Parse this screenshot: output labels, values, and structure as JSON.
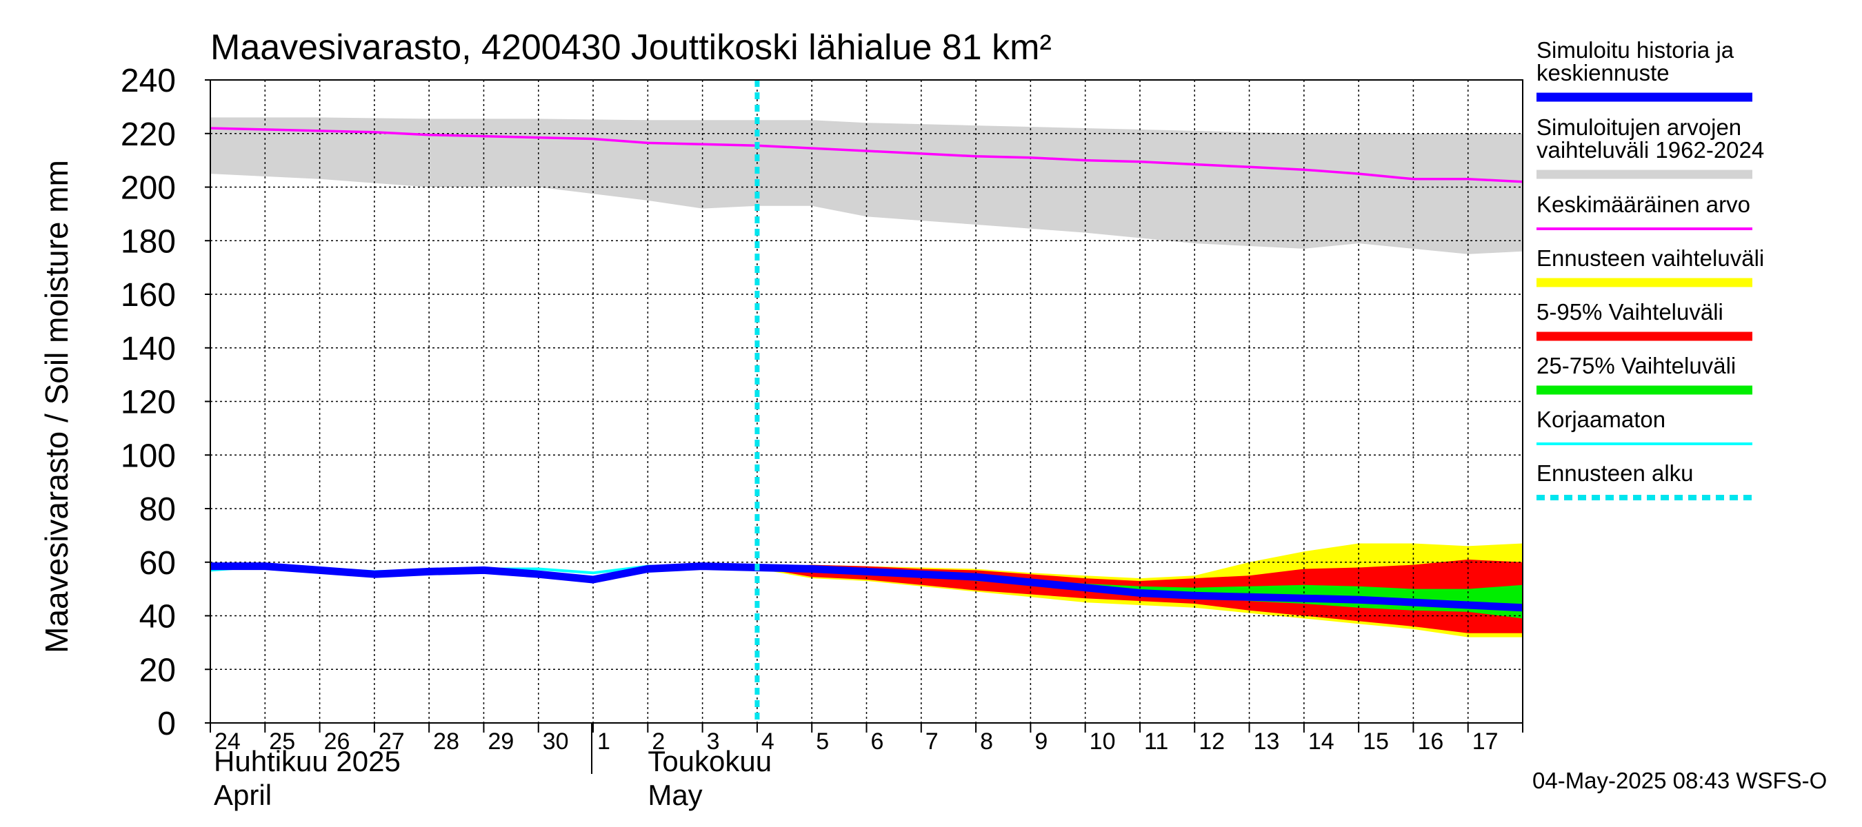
{
  "chart_data": {
    "type": "area",
    "title": "Maavesivarasto, 4200430 Jouttikoski lähialue 81 km²",
    "ylabel": "Maavesivarasto / Soil moisture   mm",
    "ylim": [
      0,
      240
    ],
    "yticks": [
      "0",
      "20",
      "40",
      "60",
      "80",
      "100",
      "120",
      "140",
      "160",
      "180",
      "200",
      "220",
      "240"
    ],
    "x_day_labels": [
      "24",
      "25",
      "26",
      "27",
      "28",
      "29",
      "30",
      "1",
      "2",
      "3",
      "4",
      "5",
      "6",
      "7",
      "8",
      "9",
      "10",
      "11",
      "12",
      "13",
      "14",
      "15",
      "16",
      "17"
    ],
    "x_range_days": [
      0,
      24
    ],
    "months": [
      {
        "line1": "Huhtikuu  2025",
        "line2": "April"
      },
      {
        "line1": "Toukokuu",
        "line2": "May"
      }
    ],
    "forecast_start_day": 10.0,
    "historical_range": {
      "x": [
        0,
        2,
        4,
        6,
        8,
        9,
        10,
        11,
        12,
        14,
        16,
        18,
        20,
        21,
        22,
        23,
        24
      ],
      "upper": [
        226,
        226,
        225.5,
        225.5,
        225,
        225,
        225,
        225,
        224,
        223,
        222,
        221,
        220,
        220,
        220,
        220,
        220
      ],
      "lower": [
        205,
        203,
        200,
        200,
        195,
        192,
        193,
        193,
        189,
        186,
        183,
        179,
        177,
        179,
        177,
        175,
        176
      ]
    },
    "mean": {
      "x": [
        0,
        1,
        2,
        3,
        4,
        5,
        6,
        7,
        8,
        9,
        10,
        11,
        12,
        13,
        14,
        15,
        16,
        17,
        18,
        19,
        20,
        21,
        22,
        23,
        24
      ],
      "values": [
        222,
        221.5,
        221,
        220.5,
        219.5,
        219,
        218.5,
        218,
        216.5,
        216,
        215.5,
        214.5,
        213.5,
        212.5,
        211.5,
        211,
        210,
        209.5,
        208.5,
        207.5,
        206.5,
        205,
        203,
        203,
        202
      ]
    },
    "forecast_x": [
      10,
      11,
      12,
      13,
      14,
      15,
      16,
      17,
      18,
      19,
      20,
      21,
      22,
      23,
      24
    ],
    "forecast_range": {
      "upper": [
        58,
        59,
        58.5,
        58,
        57.5,
        56,
        55,
        54,
        55,
        60,
        64,
        67,
        67,
        66,
        67
      ],
      "lower": [
        57.5,
        54,
        53,
        51,
        49,
        47,
        45,
        44,
        43,
        41,
        39,
        37,
        35,
        32,
        32
      ]
    },
    "range_5_95": {
      "upper": [
        58,
        59,
        58.5,
        57.5,
        57,
        55.5,
        54,
        53,
        54,
        55,
        57.5,
        58,
        59,
        61,
        60
      ],
      "lower": [
        58,
        54.5,
        53.5,
        51.5,
        49.5,
        48,
        46.5,
        45.5,
        44.5,
        42,
        40,
        38,
        36,
        33.5,
        33.5
      ]
    },
    "range_25_75": {
      "upper": [
        58,
        57.5,
        57,
        56,
        55,
        53.5,
        52,
        51,
        50.5,
        51,
        51.5,
        51,
        50,
        50,
        51.5
      ],
      "lower": [
        58,
        57,
        56,
        55,
        53,
        51.5,
        49.5,
        48,
        47,
        45.5,
        44.5,
        43,
        42,
        41.5,
        39
      ]
    },
    "simulated": {
      "x": [
        0,
        1,
        2,
        3,
        4,
        5,
        6,
        7,
        8,
        9,
        10,
        11,
        12,
        13,
        14,
        15,
        16,
        17,
        18,
        19,
        20,
        21,
        22,
        23,
        24
      ],
      "values": [
        58.5,
        58.5,
        57,
        55.5,
        56.5,
        57,
        55.5,
        53.5,
        57.5,
        58.5,
        58,
        57.5,
        56.5,
        55.5,
        54.5,
        52.5,
        50.5,
        48.5,
        47.5,
        47,
        46.5,
        46,
        45,
        44,
        43
      ]
    },
    "uncorrected": {
      "x": [
        0,
        1,
        2,
        3,
        4,
        5,
        6,
        7,
        8,
        9,
        10
      ],
      "values": [
        57,
        58.5,
        57.5,
        56.5,
        57,
        57.5,
        57.5,
        56,
        58.5,
        58.5,
        58
      ]
    },
    "legend": [
      {
        "label": "Simuloitu historia ja keskiennuste",
        "color": "#0000ff",
        "style": "thick"
      },
      {
        "label": "Simuloitujen arvojen vaihteluväli 1962-2024",
        "color": "#d3d3d3",
        "style": "thick"
      },
      {
        "label": "Keskimääräinen arvo",
        "color": "#ff00ff",
        "style": "thin"
      },
      {
        "label": "Ennusteen vaihteluväli",
        "color": "#ffff00",
        "style": "thick"
      },
      {
        "label": "5-95% Vaihteluväli",
        "color": "#ff0000",
        "style": "thick"
      },
      {
        "label": "25-75% Vaihteluväli",
        "color": "#00ee00",
        "style": "thick"
      },
      {
        "label": "Korjaamaton",
        "color": "#00ffff",
        "style": "thin"
      },
      {
        "label": "Ennusteen alku",
        "color": "#00e5ee",
        "style": "dashed"
      }
    ]
  },
  "legend_lines": [
    [
      "Simuloitu historia ja",
      "keskiennuste"
    ],
    [
      "Simuloitujen arvojen",
      "vaihteluväli 1962-2024"
    ],
    [
      "Keskimääräinen arvo"
    ],
    [
      "Ennusteen vaihteluväli"
    ],
    [
      "5-95% Vaihteluväli"
    ],
    [
      "25-75% Vaihteluväli"
    ],
    [
      "Korjaamaton"
    ],
    [
      "Ennusteen alku"
    ]
  ],
  "footer": "04-May-2025 08:43 WSFS-O",
  "colors": {
    "historical": "#d3d3d3",
    "mean": "#ff00ff",
    "forecast_range": "#ffff00",
    "range_5_95": "#ff0000",
    "range_25_75": "#00ee00",
    "simulated": "#0000ff",
    "uncorrected": "#00ffff",
    "forecast_start": "#00e5ee"
  }
}
